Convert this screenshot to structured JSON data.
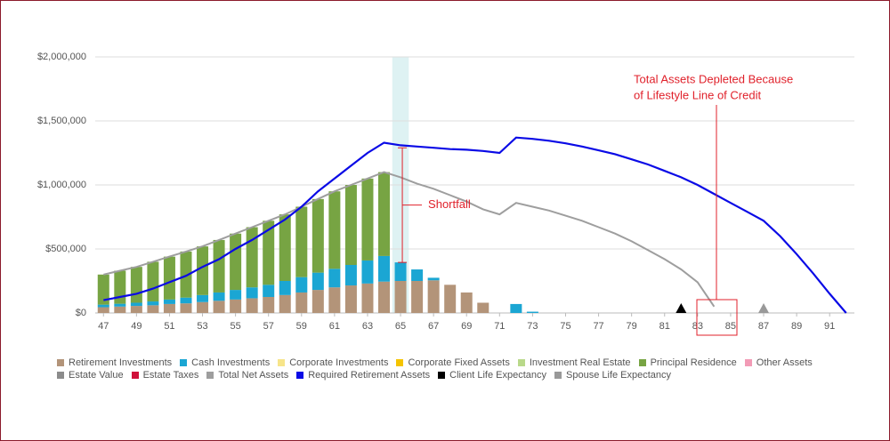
{
  "chart_data": {
    "type": "bar",
    "categories": [
      "47",
      null,
      "49",
      null,
      "51",
      null,
      "53",
      null,
      "55",
      null,
      "57",
      null,
      "59",
      null,
      "61",
      null,
      "63",
      null,
      "65",
      null,
      "67",
      null,
      "69",
      null,
      "71",
      null,
      "73",
      null,
      "75",
      null,
      "77",
      null,
      "79",
      null,
      "81",
      null,
      "83",
      null,
      "85",
      null,
      "87",
      null,
      "89",
      null,
      "91",
      null
    ],
    "ylim": [
      0,
      2000000
    ],
    "yticks": [
      {
        "value": 0,
        "label": "$0"
      },
      {
        "value": 500000,
        "label": "$500,000"
      },
      {
        "value": 1000000,
        "label": "$1,000,000"
      },
      {
        "value": 1500000,
        "label": "$1,500,000"
      },
      {
        "value": 2000000,
        "label": "$2,000,000"
      }
    ],
    "grid": true,
    "series": [
      {
        "name": "Retirement Investments",
        "color": "#b39479",
        "kind": "bar",
        "values": [
          45000,
          50000,
          55000,
          60000,
          70000,
          75000,
          85000,
          95000,
          105000,
          115000,
          125000,
          140000,
          160000,
          180000,
          200000,
          215000,
          230000,
          245000,
          250000,
          250000,
          255000,
          220000,
          160000,
          80000,
          0,
          0,
          0,
          0,
          0,
          0,
          0,
          0,
          0,
          0,
          0,
          0,
          0,
          0,
          0,
          0,
          0,
          0,
          0,
          0,
          0,
          0
        ]
      },
      {
        "name": "Cash Investments",
        "color": "#1ba6d3",
        "kind": "bar",
        "values": [
          20000,
          22000,
          25000,
          30000,
          35000,
          45000,
          55000,
          65000,
          75000,
          85000,
          95000,
          110000,
          120000,
          135000,
          145000,
          160000,
          180000,
          200000,
          145000,
          90000,
          20000,
          0,
          0,
          0,
          0,
          70000,
          10000,
          0,
          0,
          0,
          0,
          0,
          0,
          0,
          0,
          0,
          0,
          0,
          0,
          0,
          0,
          0,
          0,
          0,
          0,
          0
        ]
      },
      {
        "name": "Corporate Investments",
        "color": "#f7e58a",
        "kind": "bar",
        "values": [
          0,
          0,
          0,
          0,
          0,
          0,
          0,
          0,
          0,
          0,
          0,
          0,
          0,
          0,
          0,
          0,
          0,
          0,
          0,
          0,
          0,
          0,
          0,
          0,
          0,
          0,
          0,
          0,
          0,
          0,
          0,
          0,
          0,
          0,
          0,
          0,
          0,
          0,
          0,
          0,
          0,
          0,
          0,
          0,
          0,
          0
        ]
      },
      {
        "name": "Corporate Fixed Assets",
        "color": "#f5c400",
        "kind": "bar",
        "values": [
          0,
          0,
          0,
          0,
          0,
          0,
          0,
          0,
          0,
          0,
          0,
          0,
          0,
          0,
          0,
          0,
          0,
          0,
          0,
          0,
          0,
          0,
          0,
          0,
          0,
          0,
          0,
          0,
          0,
          0,
          0,
          0,
          0,
          0,
          0,
          0,
          0,
          0,
          0,
          0,
          0,
          0,
          0,
          0,
          0,
          0
        ]
      },
      {
        "name": "Investment Real Estate",
        "color": "#b9d98a",
        "kind": "bar",
        "values": [
          0,
          0,
          0,
          0,
          0,
          0,
          0,
          0,
          0,
          0,
          0,
          0,
          0,
          0,
          0,
          0,
          0,
          0,
          0,
          0,
          0,
          0,
          0,
          0,
          0,
          0,
          0,
          0,
          0,
          0,
          0,
          0,
          0,
          0,
          0,
          0,
          0,
          0,
          0,
          0,
          0,
          0,
          0,
          0,
          0,
          0
        ]
      },
      {
        "name": "Principal Residence",
        "color": "#77a443",
        "kind": "bar",
        "values": [
          235000,
          258000,
          280000,
          310000,
          335000,
          360000,
          380000,
          410000,
          440000,
          470000,
          500000,
          520000,
          550000,
          575000,
          605000,
          625000,
          640000,
          655000,
          0,
          0,
          0,
          0,
          0,
          0,
          0,
          0,
          0,
          0,
          0,
          0,
          0,
          0,
          0,
          0,
          0,
          0,
          0,
          0,
          0,
          0,
          0,
          0,
          0,
          0,
          0,
          0
        ]
      },
      {
        "name": "Other Assets",
        "color": "#f29bb6",
        "kind": "bar",
        "values": [
          0,
          0,
          0,
          0,
          0,
          0,
          0,
          0,
          0,
          0,
          0,
          0,
          0,
          0,
          0,
          0,
          0,
          0,
          0,
          0,
          0,
          0,
          0,
          0,
          0,
          0,
          0,
          0,
          0,
          0,
          0,
          0,
          0,
          0,
          0,
          0,
          0,
          0,
          0,
          0,
          0,
          0,
          0,
          0,
          0,
          0
        ]
      },
      {
        "name": "Estate Value",
        "color": "#8c8c8c",
        "kind": "bar",
        "values": [
          0,
          0,
          0,
          0,
          0,
          0,
          0,
          0,
          0,
          0,
          0,
          0,
          0,
          0,
          0,
          0,
          0,
          0,
          0,
          0,
          0,
          0,
          0,
          0,
          0,
          0,
          0,
          0,
          0,
          0,
          0,
          0,
          0,
          0,
          0,
          0,
          0,
          0,
          0,
          0,
          0,
          0,
          0,
          0,
          0,
          0
        ]
      },
      {
        "name": "Estate Taxes",
        "color": "#d0103a",
        "kind": "bar",
        "values": [
          0,
          0,
          0,
          0,
          0,
          0,
          0,
          0,
          0,
          0,
          0,
          0,
          0,
          0,
          0,
          0,
          0,
          0,
          0,
          0,
          0,
          0,
          0,
          0,
          0,
          0,
          0,
          0,
          0,
          0,
          0,
          0,
          0,
          0,
          0,
          0,
          0,
          0,
          0,
          0,
          0,
          0,
          0,
          0,
          0,
          0
        ]
      },
      {
        "name": "Total Net Assets",
        "color": "#9e9e9e",
        "kind": "line",
        "values": [
          300000,
          330000,
          360000,
          400000,
          440000,
          480000,
          520000,
          570000,
          620000,
          670000,
          720000,
          770000,
          830000,
          890000,
          950000,
          1000000,
          1050000,
          1100000,
          1060000,
          1010000,
          970000,
          920000,
          870000,
          810000,
          770000,
          860000,
          830000,
          800000,
          760000,
          720000,
          670000,
          620000,
          560000,
          490000,
          420000,
          340000,
          240000,
          50000,
          null,
          null,
          null,
          null,
          null,
          null,
          null,
          null
        ]
      },
      {
        "name": "Required Retirement Assets",
        "color": "#0a0ae6",
        "kind": "line",
        "values": [
          100000,
          125000,
          150000,
          190000,
          240000,
          290000,
          360000,
          420000,
          500000,
          570000,
          650000,
          730000,
          830000,
          950000,
          1050000,
          1150000,
          1250000,
          1330000,
          1310000,
          1300000,
          1290000,
          1280000,
          1275000,
          1265000,
          1250000,
          1370000,
          1360000,
          1345000,
          1325000,
          1300000,
          1270000,
          1240000,
          1200000,
          1160000,
          1110000,
          1060000,
          1000000,
          930000,
          860000,
          790000,
          720000,
          600000,
          460000,
          310000,
          150000,
          0
        ]
      },
      {
        "name": "Client Life Expectancy",
        "color": "#000000",
        "kind": "marker",
        "x": 82
      },
      {
        "name": "Spouse Life Expectancy",
        "color": "#999999",
        "kind": "marker",
        "x": 87
      }
    ],
    "annotations": [
      {
        "text": "Shortfall",
        "color": "#e0212b"
      },
      {
        "lines": [
          "Total Assets Depleted Because",
          "of Lifestyle Line of Credit"
        ],
        "color": "#e0212b"
      }
    ]
  }
}
